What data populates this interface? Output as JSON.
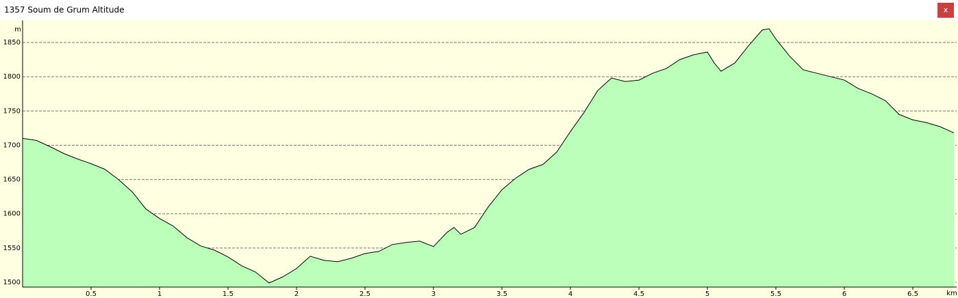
{
  "window": {
    "title": "1357 Soum de Grum Altitude",
    "close": "x"
  },
  "chart_data": {
    "type": "area",
    "y_label": "m",
    "x_label": "km",
    "x": [
      0,
      0.1,
      0.2,
      0.3,
      0.4,
      0.5,
      0.6,
      0.7,
      0.8,
      0.9,
      1.0,
      1.1,
      1.2,
      1.3,
      1.4,
      1.5,
      1.6,
      1.7,
      1.8,
      1.9,
      2.0,
      2.1,
      2.2,
      2.3,
      2.4,
      2.5,
      2.6,
      2.7,
      2.8,
      2.9,
      3.0,
      3.1,
      3.15,
      3.2,
      3.3,
      3.4,
      3.5,
      3.6,
      3.7,
      3.8,
      3.9,
      4.0,
      4.1,
      4.2,
      4.3,
      4.4,
      4.5,
      4.6,
      4.7,
      4.8,
      4.9,
      5.0,
      5.05,
      5.1,
      5.2,
      5.3,
      5.4,
      5.45,
      5.5,
      5.6,
      5.7,
      5.8,
      5.9,
      6.0,
      6.1,
      6.2,
      6.3,
      6.4,
      6.5,
      6.6,
      6.7,
      6.8
    ],
    "values": [
      1710,
      1707,
      1698,
      1688,
      1680,
      1673,
      1665,
      1650,
      1632,
      1607,
      1593,
      1582,
      1565,
      1553,
      1547,
      1537,
      1524,
      1515,
      1499,
      1508,
      1520,
      1538,
      1532,
      1530,
      1535,
      1542,
      1545,
      1555,
      1558,
      1560,
      1552,
      1573,
      1580,
      1570,
      1580,
      1610,
      1635,
      1652,
      1665,
      1672,
      1690,
      1720,
      1748,
      1780,
      1798,
      1793,
      1795,
      1805,
      1812,
      1825,
      1832,
      1836,
      1820,
      1808,
      1820,
      1845,
      1868,
      1870,
      1855,
      1830,
      1810,
      1805,
      1800,
      1795,
      1783,
      1775,
      1765,
      1745,
      1737,
      1733,
      1727,
      1718
    ],
    "fill": "#bbffbb",
    "line_color": "#000000",
    "xlim": [
      0,
      6.82
    ],
    "xticks": [
      0.5,
      1,
      1.5,
      2,
      2.5,
      3,
      3.5,
      4,
      4.5,
      5,
      5.5,
      6,
      6.5
    ],
    "ylim": [
      1493,
      1882
    ],
    "yticks": [
      1500,
      1550,
      1600,
      1650,
      1700,
      1750,
      1800,
      1850
    ],
    "grid": true
  }
}
